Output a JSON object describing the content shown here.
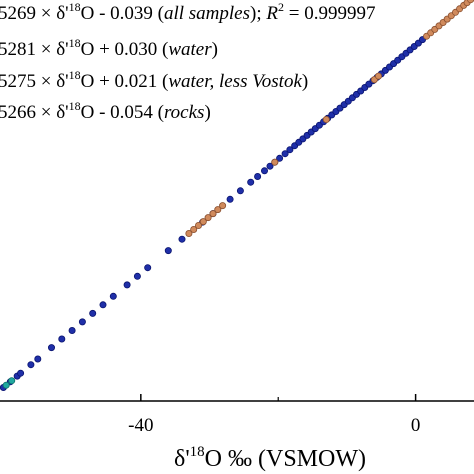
{
  "chart_data": {
    "type": "scatter",
    "title": "",
    "xlabel": "δ'18O ‰ (VSMOW)",
    "xlabel_parts": {
      "pre": "δ'",
      "sup": "18",
      "post": "O ‰ (VSMOW)"
    },
    "ylabel": "",
    "xlim": [
      -60.5,
      8.5
    ],
    "ylim": [
      -32.9,
      4.15
    ],
    "x_ticks": [
      {
        "value": -40,
        "label": "-40"
      },
      {
        "value": 0,
        "label": "0"
      }
    ],
    "grid": false,
    "equations": [
      {
        "pre": "5269 × δ'",
        "sup": "18",
        "mid": "O  - 0.039 (",
        "ital": "all samples",
        "post": "); ",
        "r2_label": "R",
        "r2_sup": "2",
        "r2_value": " = 0.999997"
      },
      {
        "pre": "5281 × δ'",
        "sup": "18",
        "mid": "O + 0.030 (",
        "ital": "water",
        "post": ")"
      },
      {
        "pre": "5275 × δ'",
        "sup": "18",
        "mid": "O + 0.021 (",
        "ital": "water, less Vostok",
        "post": ")"
      },
      {
        "pre": "5266 × δ'",
        "sup": "18",
        "mid": "O  - 0.054 (",
        "ital": "rocks",
        "post": ")"
      }
    ],
    "series": [
      {
        "kind": "water",
        "color": "#1f2fa8",
        "edge": "#0a1470",
        "x": [
          -60,
          -59,
          -58,
          -57.5,
          -56,
          -55,
          -53,
          -51.5,
          -50,
          -48.5,
          -47,
          -45.5,
          -44,
          -42,
          -40.5,
          -39,
          -36,
          -34,
          -31,
          -29.5,
          -27,
          -25.5,
          -24,
          -23,
          -22,
          -21.2,
          -20.5,
          -19.8,
          -19,
          -18.3,
          -17.6,
          -17,
          -16.4,
          -15.8,
          -15.2,
          -14.6,
          -14,
          -13.4,
          -12.8,
          -12.2,
          -11.6,
          -11,
          -10.4,
          -9.8,
          -9.2,
          -8.6,
          -8,
          -7.4,
          -6.8,
          -6.2,
          -5.6,
          -5,
          -4.4,
          -3.8,
          -3.2,
          -2.6,
          -2,
          -1.4,
          -0.8,
          -0.2,
          0.4,
          1
        ]
      },
      {
        "kind": "water-vostok",
        "color": "#20a8a0",
        "edge": "#0d6e68",
        "x": [
          -59.6,
          -58.8
        ]
      },
      {
        "kind": "rocks",
        "color": "#d08a5c",
        "edge": "#8a5030",
        "x": [
          -33,
          -32.3,
          -31.6,
          -30.9,
          -30.2,
          -29.5,
          -28.8,
          -28.1,
          -20.5,
          -13,
          -6,
          -5.4,
          1.6,
          2.2,
          2.8,
          3.4,
          4,
          4.6,
          5.2,
          5.8,
          6.4,
          7,
          7.5,
          8
        ]
      }
    ],
    "fit": {
      "slope": 0.5269,
      "intercept": -0.039
    }
  }
}
